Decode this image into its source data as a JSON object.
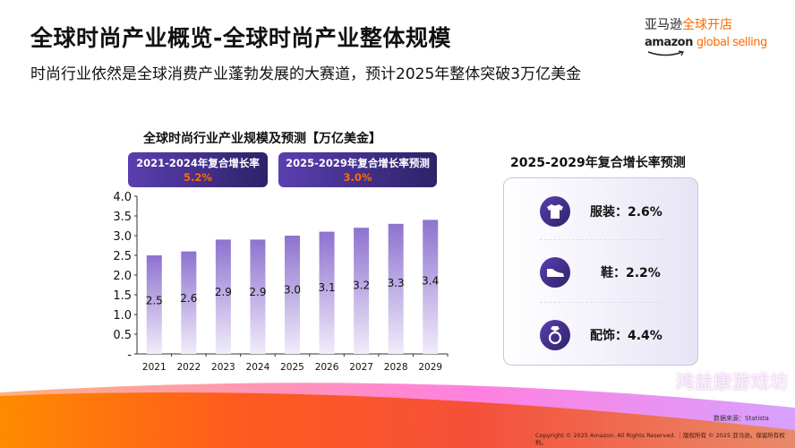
{
  "header": {
    "title": "全球时尚产业概览-全球时尚产业整体规模",
    "subtitle": "时尚行业依然是全球消费产业蓬勃发展的大赛道，预计2025年整体突破3万亿美金"
  },
  "logo": {
    "cn_black": "亚马逊",
    "cn_orange": "全球开店",
    "en_black": "amazon",
    "en_orange": "global selling"
  },
  "badges": [
    {
      "label": "2021-2024年复合增长率",
      "value": "5.2%"
    },
    {
      "label": "2025-2029年复合增长率预测",
      "value": "3.0%"
    }
  ],
  "chart_data": {
    "type": "bar",
    "title": "全球时尚行业产业规模及预测【万亿美金】",
    "categories": [
      "2021",
      "2022",
      "2023",
      "2024",
      "2025",
      "2026",
      "2027",
      "2028",
      "2029"
    ],
    "values": [
      2.5,
      2.6,
      2.9,
      2.9,
      3.0,
      3.1,
      3.2,
      3.3,
      3.4
    ],
    "data_labels": [
      "2.5",
      "2.6",
      "2.9",
      "2.9",
      "3.0",
      "3.1",
      "3.2",
      "3.3",
      "3.4"
    ],
    "ylim": [
      0,
      4.0
    ],
    "yticks": [
      "-",
      "0.5",
      "1.0",
      "1.5",
      "2.0",
      "2.5",
      "3.0",
      "3.5",
      "4.0"
    ],
    "grid": false,
    "bar_color": "#8e72cf"
  },
  "forecast": {
    "title": "2025-2029年复合增长率预测",
    "items": [
      {
        "icon": "tshirt-icon",
        "label": "服装：2.6%"
      },
      {
        "icon": "shoe-icon",
        "label": "鞋：2.2%"
      },
      {
        "icon": "ring-icon",
        "label": "配饰：4.4%"
      }
    ]
  },
  "footer": {
    "source": "数据来源：Statista",
    "copyright": "Copyright © 2025 Amazon. All Rights Reserved. ｜版权所有 © 2025 亚马逊。保留所有权利。",
    "watermark": "鸿益康游戏坊"
  },
  "colors": {
    "accent": "#ff6a00",
    "purple": "#4a3596"
  }
}
